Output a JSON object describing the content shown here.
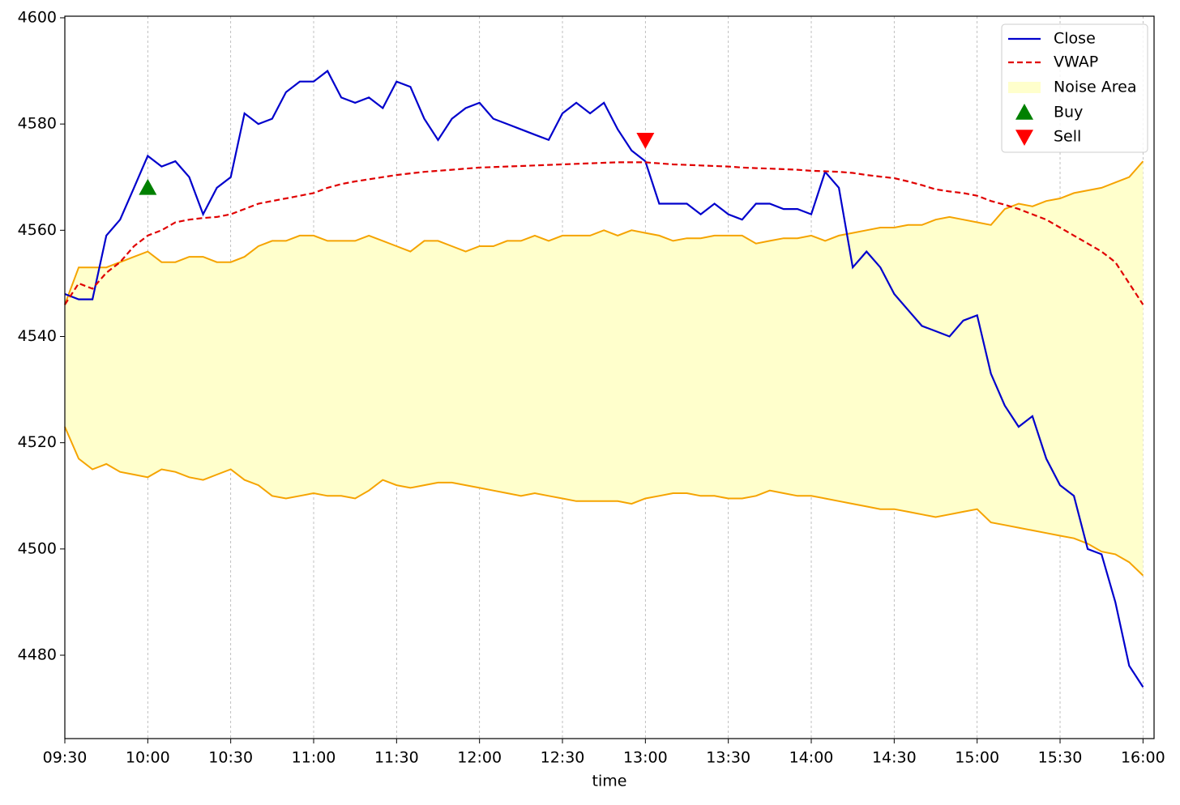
{
  "chart_data": {
    "type": "line",
    "xlabel": "time",
    "x": [
      "09:30",
      "09:35",
      "09:40",
      "09:45",
      "09:50",
      "09:55",
      "10:00",
      "10:05",
      "10:10",
      "10:15",
      "10:20",
      "10:25",
      "10:30",
      "10:35",
      "10:40",
      "10:45",
      "10:50",
      "10:55",
      "11:00",
      "11:05",
      "11:10",
      "11:15",
      "11:20",
      "11:25",
      "11:30",
      "11:35",
      "11:40",
      "11:45",
      "11:50",
      "11:55",
      "12:00",
      "12:05",
      "12:10",
      "12:15",
      "12:20",
      "12:25",
      "12:30",
      "12:35",
      "12:40",
      "12:45",
      "12:50",
      "12:55",
      "13:00",
      "13:05",
      "13:10",
      "13:15",
      "13:20",
      "13:25",
      "13:30",
      "13:35",
      "13:40",
      "13:45",
      "13:50",
      "13:55",
      "14:00",
      "14:05",
      "14:10",
      "14:15",
      "14:20",
      "14:25",
      "14:30",
      "14:35",
      "14:40",
      "14:45",
      "14:50",
      "14:55",
      "15:00",
      "15:05",
      "15:10",
      "15:15",
      "15:20",
      "15:25",
      "15:30",
      "15:35",
      "15:40",
      "15:45",
      "15:50",
      "15:55",
      "16:00"
    ],
    "series": [
      {
        "name": "Close",
        "color": "#0000cc",
        "dash": false,
        "values": [
          4548,
          4547,
          4547,
          4559,
          4562,
          4568,
          4574,
          4572,
          4573,
          4570,
          4563,
          4568,
          4570,
          4582,
          4580,
          4581,
          4586,
          4588,
          4588,
          4590,
          4585,
          4584,
          4585,
          4583,
          4588,
          4587,
          4581,
          4577,
          4581,
          4583,
          4584,
          4581,
          4580,
          4579,
          4578,
          4577,
          4582,
          4584,
          4582,
          4584,
          4579,
          4575,
          4573,
          4565,
          4565,
          4565,
          4563,
          4565,
          4563,
          4562,
          4565,
          4565,
          4564,
          4564,
          4563,
          4571,
          4568,
          4553,
          4556,
          4553,
          4548,
          4545,
          4542,
          4541,
          4540,
          4543,
          4544,
          4533,
          4527,
          4523,
          4525,
          4517,
          4512,
          4510,
          4500,
          4499,
          4490,
          4478,
          4474
        ]
      },
      {
        "name": "VWAP",
        "color": "#e00000",
        "dash": true,
        "values": [
          4546,
          4550,
          4549,
          4552,
          4554,
          4557,
          4559,
          4560,
          4561.5,
          4562,
          4562.3,
          4562.5,
          4563,
          4564,
          4565,
          4565.5,
          4566,
          4566.5,
          4567,
          4568,
          4568.7,
          4569.2,
          4569.6,
          4570,
          4570.4,
          4570.7,
          4571,
          4571.2,
          4571.4,
          4571.6,
          4571.8,
          4571.9,
          4572,
          4572.1,
          4572.2,
          4572.3,
          4572.4,
          4572.5,
          4572.6,
          4572.7,
          4572.8,
          4572.8,
          4572.8,
          4572.6,
          4572.4,
          4572.3,
          4572.2,
          4572.1,
          4572,
          4571.8,
          4571.7,
          4571.6,
          4571.5,
          4571.4,
          4571.2,
          4571.1,
          4571,
          4570.8,
          4570.4,
          4570.1,
          4569.8,
          4569.2,
          4568.5,
          4567.7,
          4567.3,
          4567,
          4566.5,
          4565.5,
          4564.8,
          4564,
          4563,
          4562,
          4560.5,
          4559,
          4557.5,
          4556,
          4554,
          4550,
          4546
        ]
      }
    ],
    "noise_area": {
      "name": "Noise Area",
      "color": "#ffffcc",
      "edge_color": "#f5a300",
      "upper": [
        4546,
        4553,
        4553,
        4553,
        4554,
        4555,
        4556,
        4554,
        4554,
        4555,
        4555,
        4554,
        4554,
        4555,
        4557,
        4558,
        4558,
        4559,
        4559,
        4558,
        4558,
        4558,
        4559,
        4558,
        4557,
        4556,
        4558,
        4558,
        4557,
        4556,
        4557,
        4557,
        4558,
        4558,
        4559,
        4558,
        4559,
        4559,
        4559,
        4560,
        4559,
        4560,
        4559.5,
        4559,
        4558,
        4558.5,
        4558.5,
        4559,
        4559,
        4559,
        4557.5,
        4558,
        4558.5,
        4558.5,
        4559,
        4558,
        4559,
        4559.5,
        4560,
        4560.5,
        4560.5,
        4561,
        4561,
        4562,
        4562.5,
        4562,
        4561.5,
        4561,
        4564,
        4565,
        4564.5,
        4565.5,
        4566,
        4567,
        4567.5,
        4568,
        4569,
        4570,
        4573
      ],
      "lower": [
        4523,
        4517,
        4515,
        4516,
        4514.5,
        4514,
        4513.5,
        4515,
        4514.5,
        4513.5,
        4513,
        4514,
        4515,
        4513,
        4512,
        4510,
        4509.5,
        4510,
        4510.5,
        4510,
        4510,
        4509.5,
        4511,
        4513,
        4512,
        4511.5,
        4512,
        4512.5,
        4512.5,
        4512,
        4511.5,
        4511,
        4510.5,
        4510,
        4510.5,
        4510,
        4509.5,
        4509,
        4509,
        4509,
        4509,
        4508.5,
        4509.5,
        4510,
        4510.5,
        4510.5,
        4510,
        4510,
        4509.5,
        4509.5,
        4510,
        4511,
        4510.5,
        4510,
        4510,
        4509.5,
        4509,
        4508.5,
        4508,
        4507.5,
        4507.5,
        4507,
        4506.5,
        4506,
        4506.5,
        4507,
        4507.5,
        4505,
        4504.5,
        4504,
        4503.5,
        4503,
        4502.5,
        4502,
        4501,
        4499.5,
        4499,
        4497.5,
        4495
      ]
    },
    "markers": [
      {
        "name": "Buy",
        "x": "10:00",
        "y": 4568,
        "color": "#008000",
        "shape": "triangle-up"
      },
      {
        "name": "Sell",
        "x": "13:00",
        "y": 4577,
        "color": "#ff0000",
        "shape": "triangle-down"
      }
    ],
    "xlim": [
      "09:30",
      "16:04"
    ],
    "xticks": [
      "09:30",
      "10:00",
      "10:30",
      "11:00",
      "11:30",
      "12:00",
      "12:30",
      "13:00",
      "13:30",
      "14:00",
      "14:30",
      "15:00",
      "15:30",
      "16:00"
    ],
    "ylim": [
      4464.3,
      4600.3
    ],
    "yticks": [
      4480,
      4500,
      4520,
      4540,
      4560,
      4580,
      4600
    ],
    "grid": "x",
    "legend": "upper right"
  }
}
